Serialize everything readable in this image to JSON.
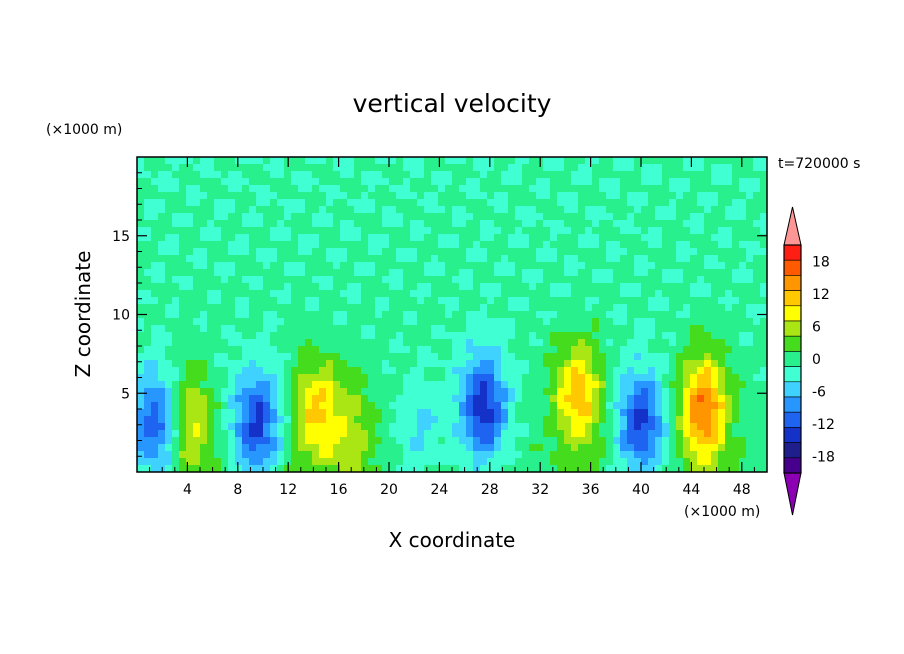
{
  "chart_data": {
    "type": "heatmap",
    "title": "vertical velocity",
    "xlabel": "X coordinate",
    "ylabel": "Z coordinate",
    "x_unit": "(×1000 m)",
    "y_unit": "(×1000 m)",
    "time_label": "t=720000 s",
    "xlim": [
      0,
      50
    ],
    "ylim": [
      0,
      20
    ],
    "x_ticks": [
      4,
      8,
      12,
      16,
      20,
      24,
      28,
      32,
      36,
      40,
      44,
      48
    ],
    "y_ticks": [
      5,
      10,
      15
    ],
    "colorbar": {
      "tick_values": [
        18,
        12,
        6,
        0,
        -6,
        -12,
        -18
      ],
      "levels": [
        -21,
        -18,
        -15,
        -12,
        -9,
        -6,
        -3,
        0,
        3,
        6,
        9,
        12,
        15,
        18,
        21
      ],
      "colors": [
        "#8c00b4",
        "#46008c",
        "#1e1e8c",
        "#1432c8",
        "#1e64f0",
        "#2896ff",
        "#40d2ff",
        "#40ffd2",
        "#28f08c",
        "#46dc1e",
        "#aae614",
        "#ffff00",
        "#ffc800",
        "#ff9600",
        "#ff5a00",
        "#ff1e14",
        "#ff9696"
      ]
    },
    "plumes": [
      {
        "x": 1.5,
        "z": 3.0,
        "w": -13
      },
      {
        "x": 4.2,
        "z": 3.0,
        "w": 9
      },
      {
        "x": 9.5,
        "z": 3.0,
        "w": -14
      },
      {
        "x": 14.2,
        "z": 4.0,
        "w": 11
      },
      {
        "x": 17.0,
        "z": 2.5,
        "w": 6
      },
      {
        "x": 22.5,
        "z": 2.5,
        "w": -5
      },
      {
        "x": 27.5,
        "z": 4.0,
        "w": -15
      },
      {
        "x": 35.0,
        "z": 5.0,
        "w": 13
      },
      {
        "x": 40.0,
        "z": 3.0,
        "w": -14
      },
      {
        "x": 45.0,
        "z": 4.0,
        "w": 17
      }
    ]
  }
}
